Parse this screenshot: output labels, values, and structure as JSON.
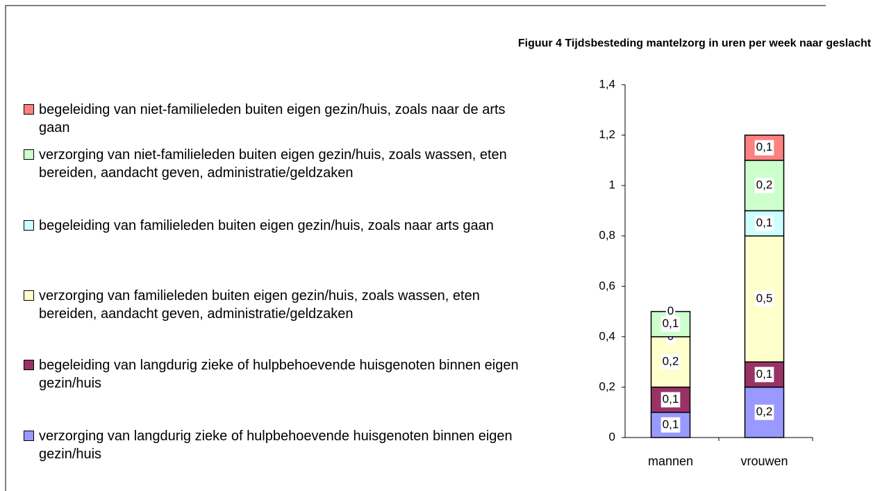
{
  "chart_data": {
    "type": "stacked_bar",
    "title": "Figuur 4 Tijdsbesteding mantelzorg in uren per week naar geslacht",
    "categories": [
      "mannen",
      "vrouwen"
    ],
    "series": [
      {
        "name": "verzorging van langdurig zieke of hulpbehoevende huisgenoten binnen eigen gezin/huis",
        "color": "#9999ff",
        "values": [
          0.1,
          0.2
        ],
        "value_labels": [
          "0,1",
          "0,2"
        ]
      },
      {
        "name": "begeleiding van langdurig zieke of hulpbehoevende huisgenoten binnen eigen gezin/huis",
        "color": "#993366",
        "values": [
          0.1,
          0.1
        ],
        "value_labels": [
          "0,1",
          "0,1"
        ]
      },
      {
        "name": "verzorging van familieleden buiten eigen gezin/huis, zoals wassen, eten bereiden, aandacht geven, administratie/geldzaken",
        "color": "#ffffcc",
        "values": [
          0.2,
          0.5
        ],
        "value_labels": [
          "0,2",
          "0,5"
        ]
      },
      {
        "name": "begeleiding van familieleden buiten eigen gezin/huis, zoals naar arts gaan",
        "color": "#ccffff",
        "values": [
          0,
          0.1
        ],
        "value_labels": [
          "0",
          "0,1"
        ]
      },
      {
        "name": "verzorging van niet-familieleden buiten eigen gezin/huis, zoals wassen, eten bereiden, aandacht geven, administratie/geldzaken",
        "color": "#ccffcc",
        "values": [
          0.1,
          0.2
        ],
        "value_labels": [
          "0,1",
          "0,2"
        ]
      },
      {
        "name": "begeleiding van niet-familieleden buiten eigen gezin/huis, zoals naar de arts gaan",
        "color": "#ff8080",
        "values": [
          0,
          0.1
        ],
        "value_labels": [
          "0",
          "0,1"
        ]
      }
    ],
    "ylim": [
      0,
      1.4
    ],
    "yticks": [
      0,
      {
        "value": 0.2,
        "label": "0,2"
      },
      {
        "value": 0.4,
        "label": "0,4"
      },
      {
        "value": 0.6,
        "label": "0,6"
      },
      {
        "value": 0.8,
        "label": "0,8"
      },
      1,
      {
        "value": 1.2,
        "label": "1,2"
      },
      {
        "value": 1.4,
        "label": "1,4"
      }
    ],
    "legend": "left"
  }
}
